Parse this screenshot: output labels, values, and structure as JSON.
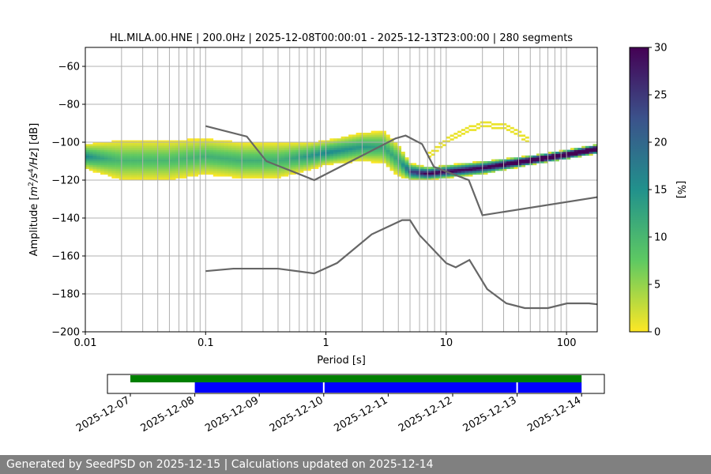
{
  "title": "HL.MILA.00.HNE | 200.0Hz | 2025-12-08T00:00:01 - 2025-12-13T23:00:00 | 280 segments",
  "footer": "Generated by SeedPSD on 2025-12-15 | Calculations updated on 2025-12-14",
  "chart_data": [
    {
      "type": "heatmap",
      "title": "HL.MILA.00.HNE | 200.0Hz | 2025-12-08T00:00:01 - 2025-12-13T23:00:00 | 280 segments",
      "xlabel": "Period [s]",
      "ylabel": "Amplitude [m²/s⁴/Hz] [dB]",
      "xscale": "log",
      "xlim": [
        0.01,
        180
      ],
      "ylim": [
        -200,
        -50
      ],
      "xticks": [
        "0.01",
        "0.1",
        "1",
        "10",
        "100"
      ],
      "yticks": [
        "-60",
        "-80",
        "-100",
        "-120",
        "-140",
        "-160",
        "-180",
        "-200"
      ],
      "grid": true,
      "colorbar": {
        "label": "[%]",
        "range": [
          0,
          30
        ],
        "ticks": [
          "0",
          "5",
          "10",
          "15",
          "20",
          "25",
          "30"
        ],
        "colormap": "viridis_r"
      },
      "psd_distribution": {
        "period": [
          0.01,
          0.02,
          0.05,
          0.1,
          0.2,
          0.4,
          0.7,
          1,
          2,
          3,
          4,
          5,
          7,
          10,
          20,
          50,
          100,
          180
        ],
        "mode_db": [
          -108,
          -110,
          -110,
          -108,
          -110,
          -110,
          -108,
          -106,
          -103,
          -103,
          -110,
          -116,
          -117,
          -116,
          -114,
          -110,
          -107,
          -104
        ],
        "spread_db": [
          6,
          10,
          10,
          9,
          9,
          9,
          7,
          6,
          7,
          8,
          8,
          4,
          3,
          3,
          3,
          2,
          2,
          2
        ]
      },
      "secondary_band": {
        "period": [
          7,
          10,
          15,
          20,
          30,
          40,
          50
        ],
        "db": [
          -108,
          -100,
          -94,
          -91,
          -92,
          -96,
          -100
        ]
      },
      "noise_models": [
        {
          "period": [
            0.1,
            0.22,
            0.32,
            0.8,
            3.8,
            4.6,
            6.3,
            7.9,
            15.4,
            20,
            180
          ],
          "db": [
            -91.5,
            -97,
            -110,
            -120,
            -98,
            -96.5,
            -101,
            -113,
            -120,
            -138.5,
            -129
          ]
        },
        {
          "period": [
            0.1,
            0.17,
            0.4,
            0.8,
            1.24,
            2.4,
            4.3,
            5,
            6,
            10,
            12,
            15.6,
            21.9,
            31.6,
            45,
            70,
            101,
            154,
            180
          ],
          "db": [
            -168,
            -166.7,
            -166.7,
            -169.2,
            -163.7,
            -148.6,
            -141.1,
            -141.1,
            -149,
            -163.8,
            -166,
            -162.1,
            -177.5,
            -185,
            -187.5,
            -187.5,
            -185,
            -185,
            -185.5
          ]
        }
      ],
      "colors": {
        "noise_model": "#666666",
        "grid": "#b0b0b0"
      }
    },
    {
      "type": "timeline",
      "xticks": [
        "2025-12-07",
        "2025-12-08",
        "2025-12-09",
        "2025-12-10",
        "2025-12-11",
        "2025-12-12",
        "2025-12-13",
        "2025-12-14"
      ],
      "data_available": {
        "color": "#008000",
        "start": "2025-12-07",
        "end": "2025-12-14"
      },
      "psd_segments": {
        "color": "#0000ff",
        "spans": [
          [
            "2025-12-08",
            "2025-12-10"
          ],
          [
            "2025-12-10",
            "2025-12-13"
          ],
          [
            "2025-12-13",
            "2025-12-14"
          ]
        ]
      }
    }
  ]
}
